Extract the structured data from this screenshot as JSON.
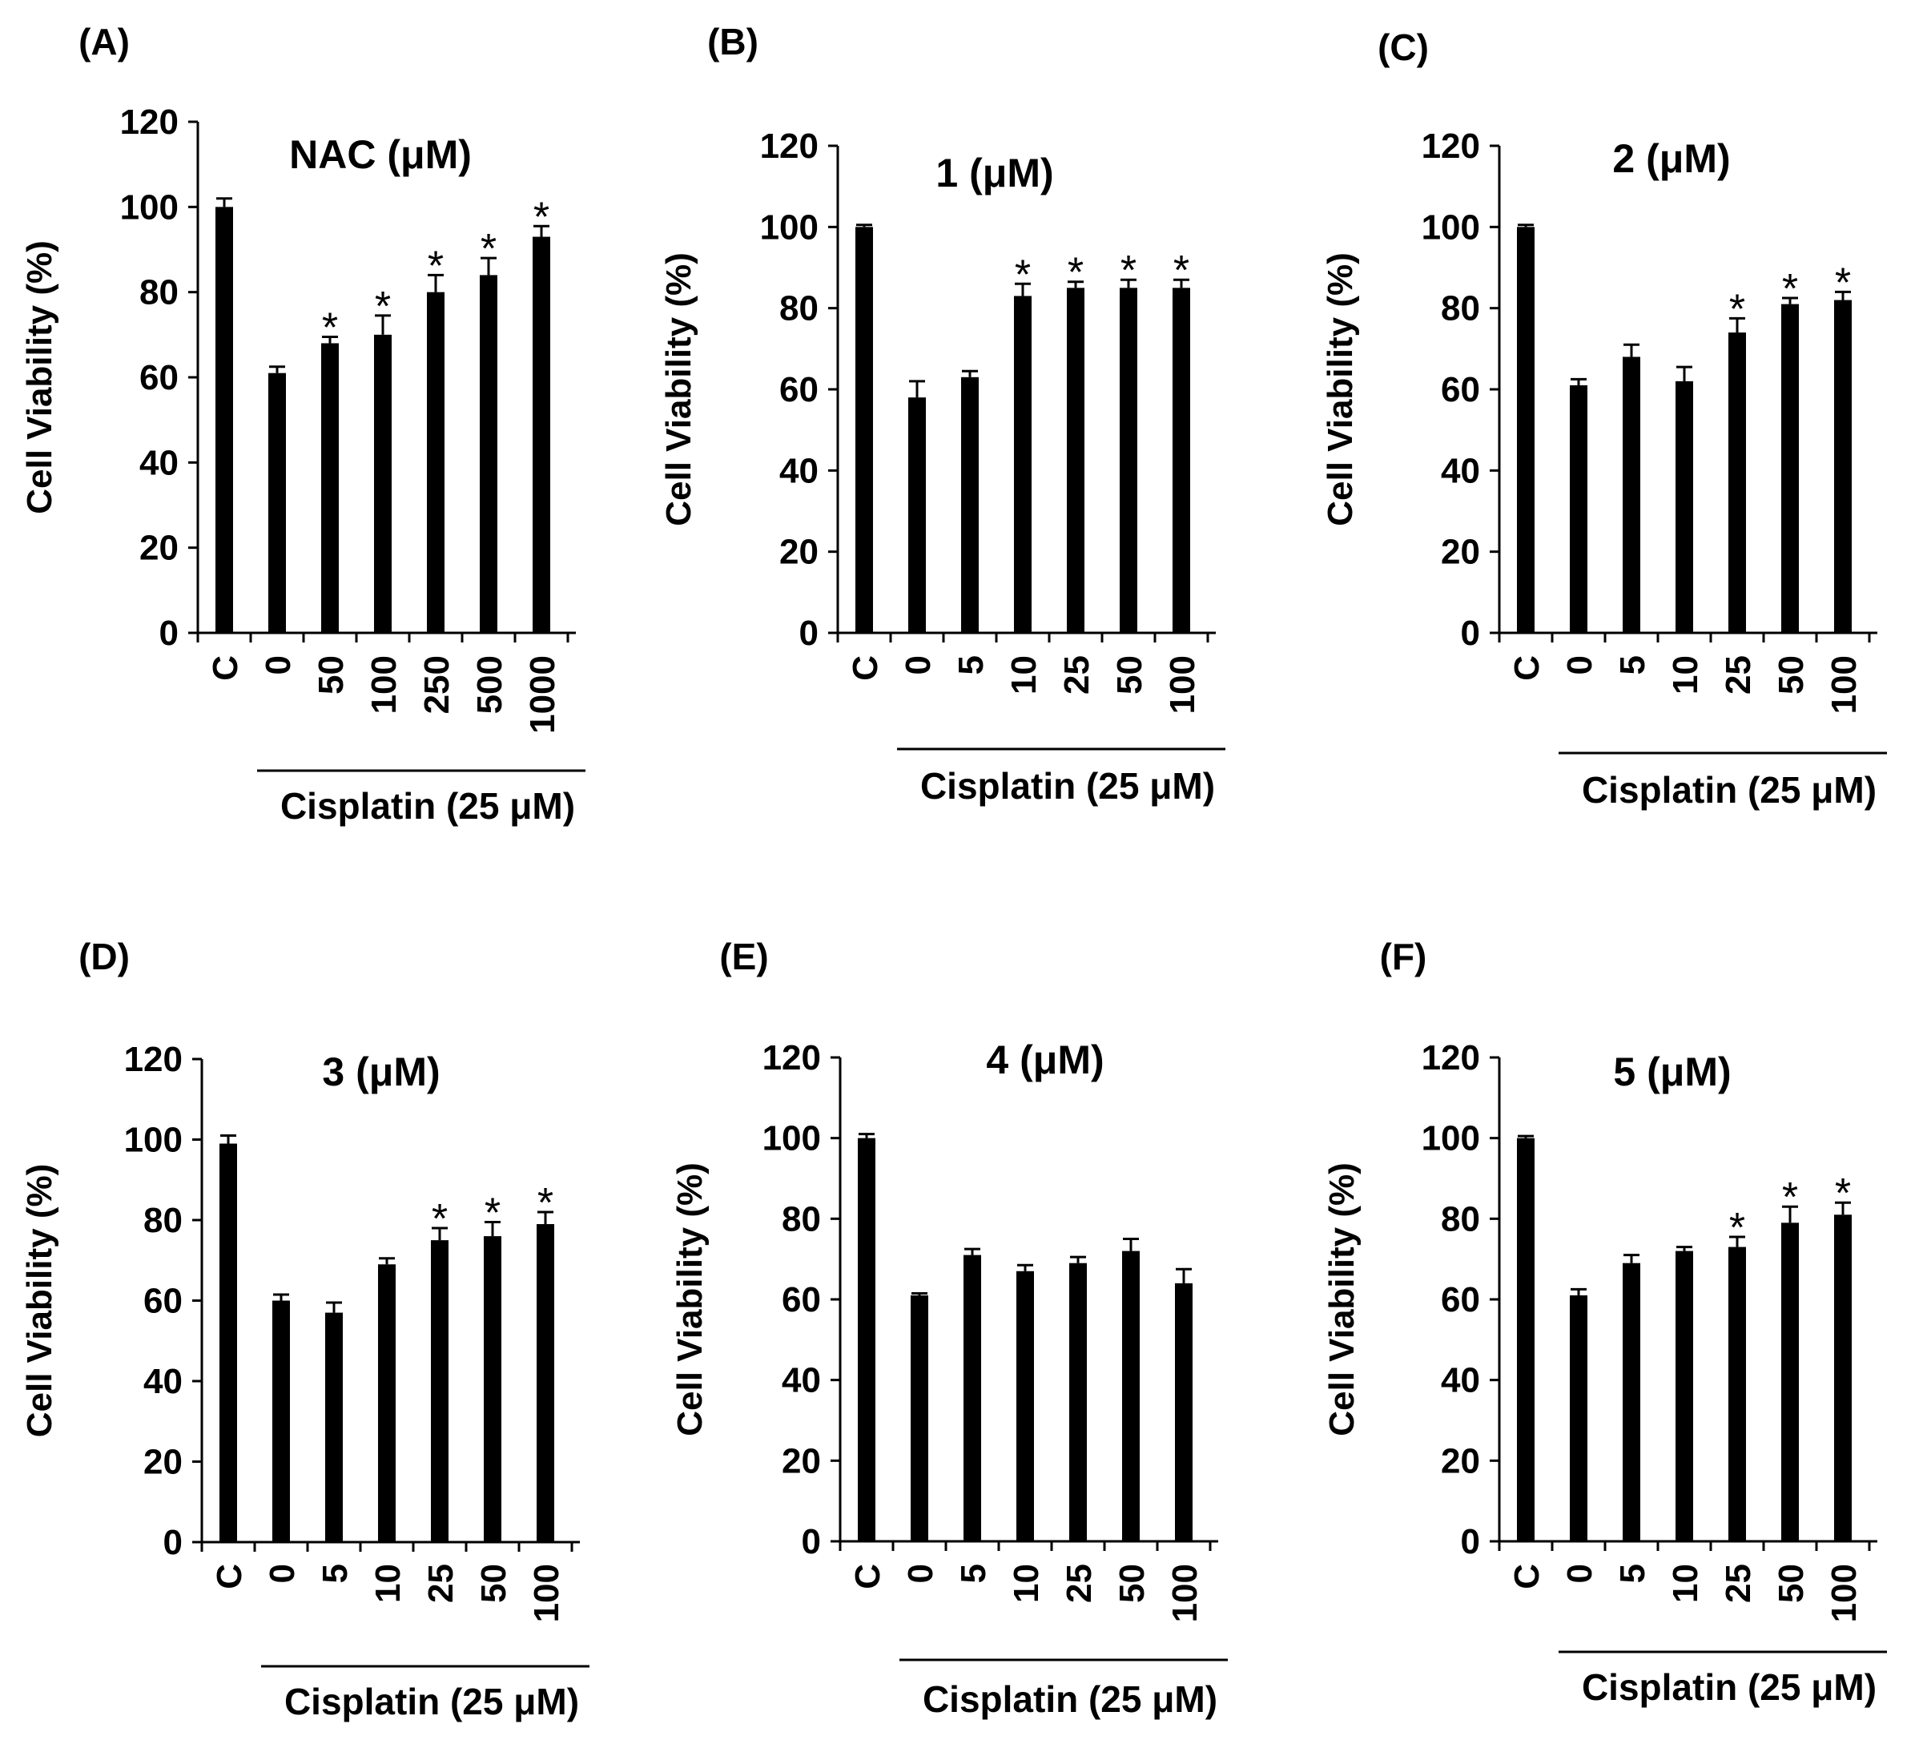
{
  "figure": {
    "ylabel": "Cell Viability (%)",
    "yticks": [
      0,
      20,
      40,
      60,
      80,
      100,
      120
    ],
    "colors": {
      "bar": "#000000",
      "axis": "#000000",
      "background": "#ffffff"
    }
  },
  "chart_data": [
    {
      "panel": "(A)",
      "type": "bar",
      "title": "NAC (μM)",
      "xlabel": "Cisplatin (25 μM)",
      "ylabel": "Cell Viability (%)",
      "ylim": [
        0,
        120
      ],
      "categories": [
        "C",
        "0",
        "50",
        "100",
        "250",
        "500",
        "1000"
      ],
      "values": [
        100,
        61,
        68,
        70,
        80,
        84,
        93
      ],
      "errors": [
        2,
        1.5,
        1.5,
        4.5,
        4,
        4,
        2.5
      ],
      "significance": [
        "",
        "",
        "*",
        "*",
        "*",
        "*",
        "*"
      ]
    },
    {
      "panel": "(B)",
      "type": "bar",
      "title": "1 (μM)",
      "xlabel": "Cisplatin (25 μM)",
      "ylabel": "Cell Viability (%)",
      "ylim": [
        0,
        120
      ],
      "categories": [
        "C",
        "0",
        "5",
        "10",
        "25",
        "50",
        "100"
      ],
      "values": [
        100,
        58,
        63,
        83,
        85,
        85,
        85
      ],
      "errors": [
        0.5,
        4,
        1.5,
        3,
        1.5,
        2,
        2
      ],
      "significance": [
        "",
        "",
        "",
        "*",
        "*",
        "*",
        "*"
      ]
    },
    {
      "panel": "(C)",
      "type": "bar",
      "title": "2 (μM)",
      "xlabel": "Cisplatin (25 μM)",
      "ylabel": "Cell Viability (%)",
      "ylim": [
        0,
        120
      ],
      "categories": [
        "C",
        "0",
        "5",
        "10",
        "25",
        "50",
        "100"
      ],
      "values": [
        100,
        61,
        68,
        62,
        74,
        81,
        82
      ],
      "errors": [
        0.5,
        1.5,
        3,
        3.5,
        3.5,
        1.5,
        2
      ],
      "significance": [
        "",
        "",
        "",
        "",
        "*",
        "*",
        "*"
      ]
    },
    {
      "panel": "(D)",
      "type": "bar",
      "title": "3 (μM)",
      "xlabel": "Cisplatin (25 μM)",
      "ylabel": "Cell Viability (%)",
      "ylim": [
        0,
        120
      ],
      "categories": [
        "C",
        "0",
        "5",
        "10",
        "25",
        "50",
        "100"
      ],
      "values": [
        99,
        60,
        57,
        69,
        75,
        76,
        79
      ],
      "errors": [
        2,
        1.5,
        2.5,
        1.5,
        3,
        3.5,
        3
      ],
      "significance": [
        "",
        "",
        "",
        "",
        "*",
        "*",
        "*"
      ]
    },
    {
      "panel": "(E)",
      "type": "bar",
      "title": "4 (μM)",
      "xlabel": "Cisplatin (25 μM)",
      "ylabel": "Cell Viability (%)",
      "ylim": [
        0,
        120
      ],
      "categories": [
        "C",
        "0",
        "5",
        "10",
        "25",
        "50",
        "100"
      ],
      "values": [
        100,
        61,
        71,
        67,
        69,
        72,
        64
      ],
      "errors": [
        1,
        0.5,
        1.5,
        1.5,
        1.5,
        3,
        3.5
      ],
      "significance": [
        "",
        "",
        "",
        "",
        "",
        "",
        ""
      ]
    },
    {
      "panel": "(F)",
      "type": "bar",
      "title": "5 (μM)",
      "xlabel": "Cisplatin (25 μM)",
      "ylabel": "Cell Viability (%)",
      "ylim": [
        0,
        120
      ],
      "categories": [
        "C",
        "0",
        "5",
        "10",
        "25",
        "50",
        "100"
      ],
      "values": [
        100,
        61,
        69,
        72,
        73,
        79,
        81
      ],
      "errors": [
        0.5,
        1.5,
        2,
        1,
        2.5,
        4,
        3
      ],
      "significance": [
        "",
        "",
        "",
        "",
        "*",
        "*",
        "*"
      ]
    }
  ]
}
